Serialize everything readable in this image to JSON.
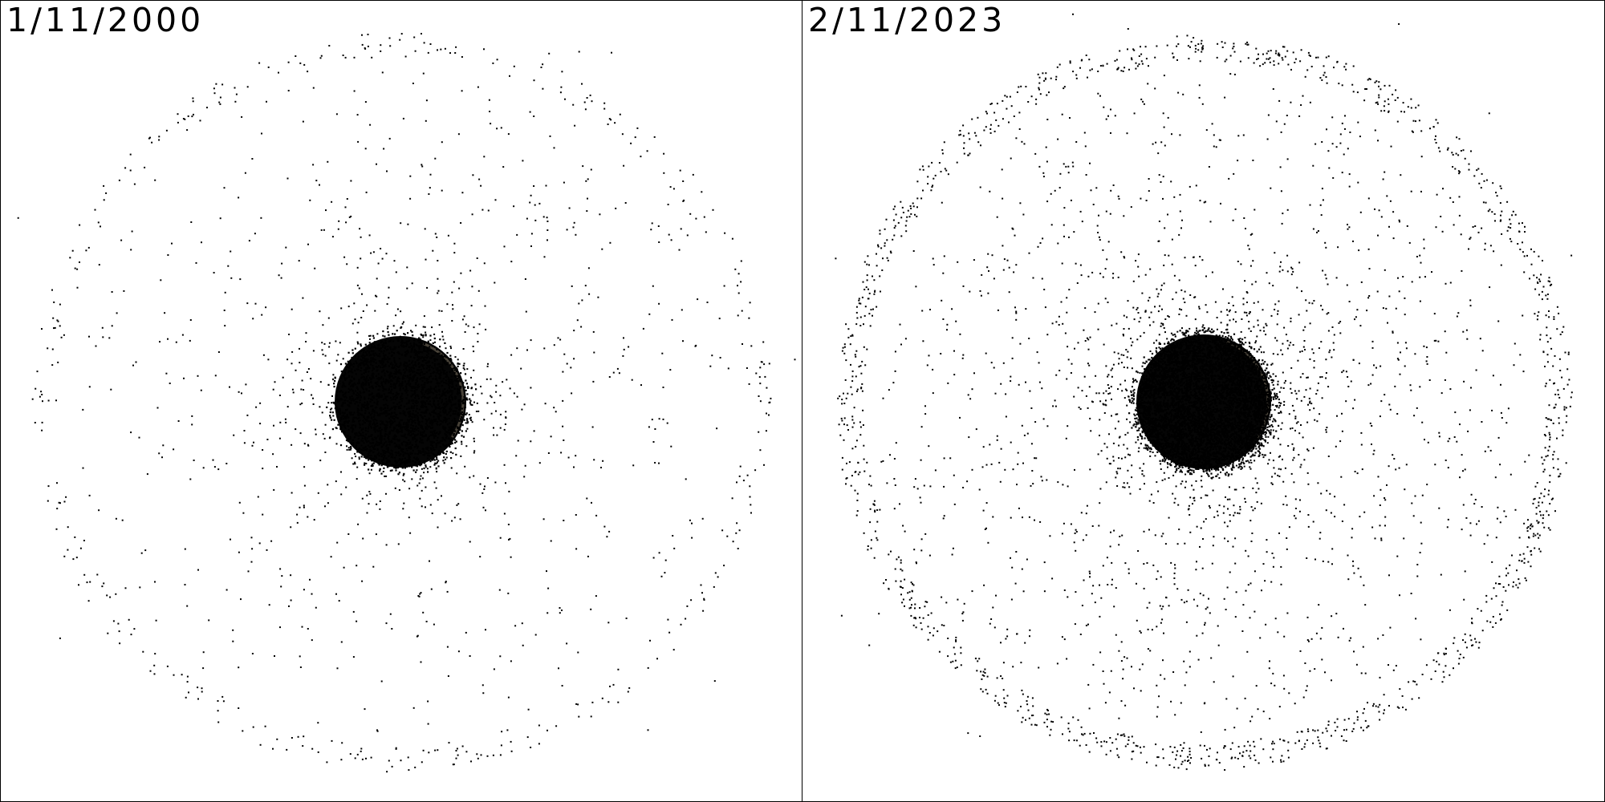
{
  "panels": [
    {
      "date_label": "1/11/2000",
      "density": {
        "halo": 2600,
        "inner_scatter": 1,
        "outer_shell": 1
      }
    },
    {
      "date_label": "2/11/2023",
      "density": {
        "halo": 5200,
        "inner_scatter": 2.1,
        "outer_shell": 3.2
      }
    }
  ],
  "colors": {
    "background": "#ffffff",
    "dot": "#000000",
    "planet_highlight": "#c8b89a",
    "border": "#000000"
  }
}
